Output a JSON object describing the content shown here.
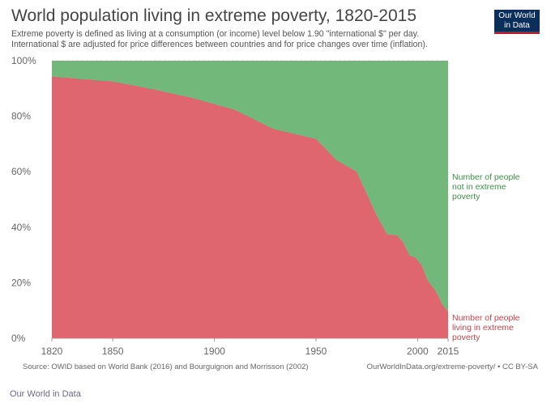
{
  "title": "World population living in extreme poverty, 1820-2015",
  "subtitle_lines": [
    "Extreme poverty is defined as living at a consumption (or income) level below 1.90 \"international $\" per day.",
    "International $ are adjusted for price differences between countries and for price changes over time (inflation)."
  ],
  "logo": {
    "line1": "Our World",
    "line2": "in Data"
  },
  "source": "Source: OWID based on World Bank (2016) and Bourguignon and Morrisson (2002)",
  "license": "OurWorldInData.org/extreme-poverty/ • CC BY-SA",
  "footer_brand": "Our World in Data",
  "colors": {
    "poverty": "#dd5e66",
    "not_poverty": "#6bb474",
    "grid": "#dddddd",
    "axis_text": "#666666"
  },
  "chart_data": {
    "type": "area",
    "stacked": true,
    "xlim": [
      1820,
      2015
    ],
    "ylim": [
      0,
      100
    ],
    "x_ticks": [
      1820,
      1850,
      1900,
      1950,
      2000,
      2015
    ],
    "y_ticks": [
      0,
      20,
      40,
      60,
      80,
      100
    ],
    "y_tick_labels": [
      "0%",
      "20%",
      "40%",
      "60%",
      "80%",
      "100%"
    ],
    "grid": true,
    "x": [
      1820,
      1850,
      1870,
      1890,
      1910,
      1929,
      1950,
      1960,
      1970,
      1980,
      1985,
      1990,
      1993,
      1996,
      1999,
      2002,
      2005,
      2008,
      2010,
      2012,
      2015
    ],
    "series": [
      {
        "name": [
          "Number of people",
          "living in extreme",
          "poverty"
        ],
        "color": "#dd5e66",
        "values": [
          94.4,
          92.6,
          89.8,
          86.5,
          82.4,
          75.5,
          71.9,
          64.3,
          60.1,
          44.1,
          37.5,
          37.1,
          34.5,
          29.9,
          29.1,
          26.3,
          20.8,
          18.0,
          15.7,
          12.4,
          9.6
        ]
      },
      {
        "name": [
          "Number of people",
          "not in extreme",
          "poverty"
        ],
        "color": "#6bb474",
        "values": [
          5.6,
          7.4,
          10.2,
          13.5,
          17.6,
          24.5,
          28.1,
          35.7,
          39.9,
          55.9,
          62.5,
          62.9,
          65.5,
          70.1,
          70.9,
          73.7,
          79.2,
          82.0,
          84.3,
          87.6,
          90.4
        ]
      }
    ]
  }
}
